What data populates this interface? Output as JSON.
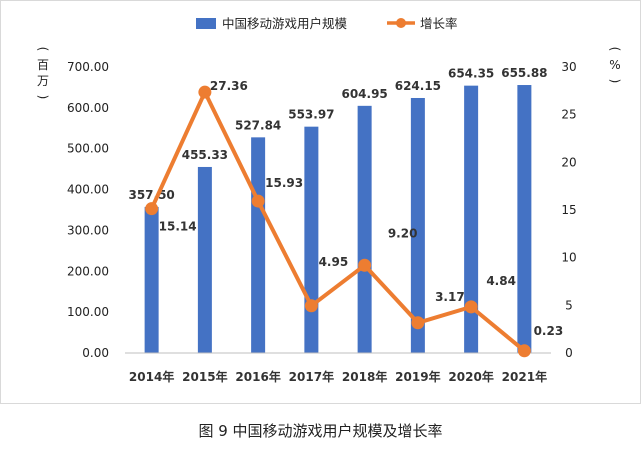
{
  "figure_caption": "图 9 中国移动游戏用户规模及增长率",
  "chart_data": {
    "type": "bar",
    "categories": [
      "2014年",
      "2015年",
      "2016年",
      "2017年",
      "2018年",
      "2019年",
      "2020年",
      "2021年"
    ],
    "series": [
      {
        "name": "中国移动游戏用户规模",
        "type": "bar",
        "axis": "left",
        "color": "#4472c4",
        "values": [
          357.5,
          455.33,
          527.84,
          553.97,
          604.95,
          624.15,
          654.35,
          655.88
        ],
        "labels": [
          "357.50",
          "455.33",
          "527.84",
          "553.97",
          "604.95",
          "624.15",
          "654.35",
          "655.88"
        ]
      },
      {
        "name": "增长率",
        "type": "line",
        "axis": "right",
        "color": "#ed7d31",
        "values": [
          15.14,
          27.36,
          15.93,
          4.95,
          9.2,
          3.17,
          4.84,
          0.23
        ],
        "labels": [
          "15.14",
          "27.36",
          "15.93",
          "4.95",
          "9.20",
          "3.17",
          "4.84",
          "0.23"
        ]
      }
    ],
    "y_left": {
      "label": "(百万)",
      "ylim": [
        0,
        700
      ],
      "ticks": [
        "0.00",
        "100.00",
        "200.00",
        "300.00",
        "400.00",
        "500.00",
        "600.00",
        "700.00"
      ]
    },
    "y_right": {
      "label": "(%)",
      "ylim": [
        0,
        30
      ],
      "ticks": [
        "0",
        "5",
        "10",
        "15",
        "20",
        "25",
        "30"
      ]
    },
    "legend_position": "top-center",
    "grid": false
  }
}
